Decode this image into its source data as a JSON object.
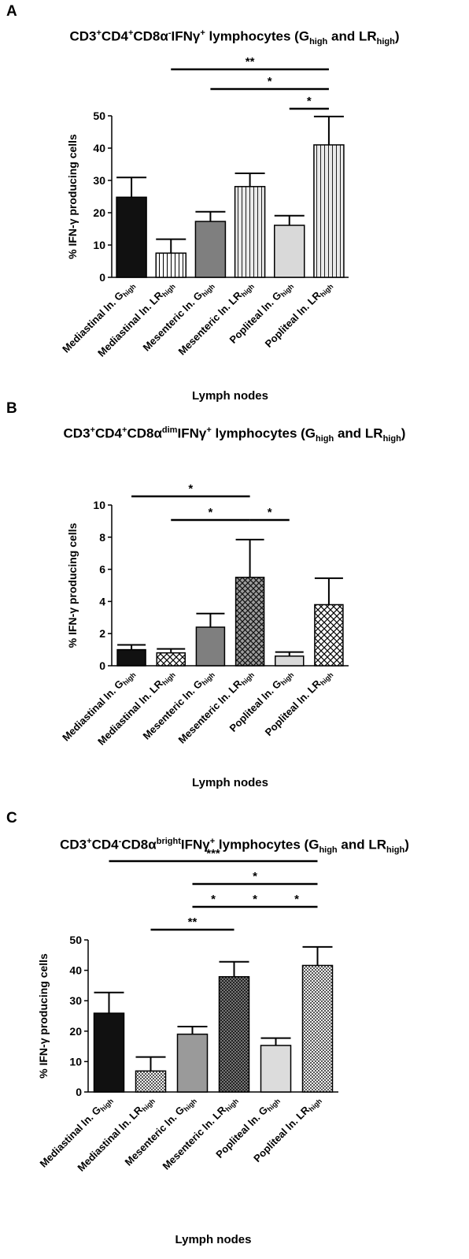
{
  "figure": {
    "panels": [
      {
        "label": "A",
        "title": {
          "cd3": "CD3",
          "cd3_sup": "+",
          "cd4": "CD4",
          "cd4_sup": "+",
          "cd8": "CD8α",
          "cd8_sup": "-",
          "ifn": "IFNγ",
          "ifn_sup": "+",
          "rest": " lymphocytes (G",
          "sub1": "high",
          "mid": " and LR",
          "sub2": "high",
          "end": ")"
        },
        "ylabel": "% IFN-γ producing cells",
        "xlabel": "Lymph nodes"
      },
      {
        "label": "B",
        "title": {
          "cd3": "CD3",
          "cd3_sup": "+",
          "cd4": "CD4",
          "cd4_sup": "+",
          "cd8": "CD8α",
          "cd8_sup": "dim",
          "ifn": "IFNγ",
          "ifn_sup": "+",
          "rest": " lymphocytes (G",
          "sub1": "high",
          "mid": " and LR",
          "sub2": "high",
          "end": ")"
        },
        "ylabel": "% IFN-γ producing cells",
        "xlabel": "Lymph nodes"
      },
      {
        "label": "C",
        "title": {
          "cd3": "CD3",
          "cd3_sup": "+",
          "cd4": "CD4",
          "cd4_sup": "-",
          "cd8": "CD8α",
          "cd8_sup": "bright",
          "ifn": "IFNγ",
          "ifn_sup": "+",
          "rest": " lymphocytes (G",
          "sub1": "high",
          "mid": " and LR",
          "sub2": "high",
          "end": ")"
        },
        "ylabel": "% IFN-γ producing cells",
        "xlabel": "Lymph nodes"
      }
    ]
  },
  "chart_data": [
    {
      "type": "bar",
      "panel": "A",
      "categories": [
        {
          "base": "Mediastinal ln. G",
          "sub": "high"
        },
        {
          "base": "Mediastinal ln. LR",
          "sub": "high"
        },
        {
          "base": "Mesenteric ln. G",
          "sub": "high"
        },
        {
          "base": "Mesenteric ln. LR",
          "sub": "high"
        },
        {
          "base": "Popliteal ln. G",
          "sub": "high"
        },
        {
          "base": "Popliteal ln. LR",
          "sub": "high"
        }
      ],
      "values": [
        24.8,
        7.5,
        17.3,
        28.1,
        16.1,
        41.0
      ],
      "errors": [
        6.1,
        4.3,
        3.0,
        4.1,
        3.0,
        8.8
      ],
      "fills": [
        "#111111",
        "pattern-vlines",
        "#7f7f7f",
        "pattern-vlines-gray",
        "#d9d9d9",
        "pattern-vlines-gray"
      ],
      "ylim": [
        0,
        50
      ],
      "yticks": [
        0,
        10,
        20,
        30,
        40,
        50
      ],
      "significance": [
        {
          "from": 1,
          "to": 5,
          "label": "**"
        },
        {
          "from": 2,
          "to": 5,
          "label": "*"
        },
        {
          "from": 4,
          "to": 5,
          "label": "*"
        }
      ]
    },
    {
      "type": "bar",
      "panel": "B",
      "categories": [
        {
          "base": "Mediastinal ln. G",
          "sub": "high"
        },
        {
          "base": "Mediastinal ln. LR",
          "sub": "high"
        },
        {
          "base": "Mesenteric ln. G",
          "sub": "high"
        },
        {
          "base": "Mesenteric ln. LR",
          "sub": "high"
        },
        {
          "base": "Popliteal ln. G",
          "sub": "high"
        },
        {
          "base": "Popliteal ln. LR",
          "sub": "high"
        }
      ],
      "values": [
        1.0,
        0.8,
        2.4,
        5.5,
        0.6,
        3.8
      ],
      "errors": [
        0.3,
        0.25,
        0.85,
        2.35,
        0.25,
        1.65
      ],
      "fills": [
        "#111111",
        "pattern-cross",
        "#7f7f7f",
        "pattern-cross-gray",
        "#d9d9d9",
        "pattern-cross"
      ],
      "ylim": [
        0,
        10
      ],
      "yticks": [
        0,
        2,
        4,
        6,
        8,
        10
      ],
      "significance": [
        {
          "from": 0,
          "to": 3,
          "label": "*"
        },
        {
          "from": 1,
          "to": 3,
          "label": "*"
        },
        {
          "from": 3,
          "to": 4,
          "label": "*"
        }
      ]
    },
    {
      "type": "bar",
      "panel": "C",
      "categories": [
        {
          "base": "Mediastinal ln. G",
          "sub": "high"
        },
        {
          "base": "Mediastinal ln. LR",
          "sub": "high"
        },
        {
          "base": "Mesenteric ln. G",
          "sub": "high"
        },
        {
          "base": "Mesenteric ln. LR",
          "sub": "high"
        },
        {
          "base": "Popliteal ln. G",
          "sub": "high"
        },
        {
          "base": "Popliteal ln. LR",
          "sub": "high"
        }
      ],
      "values": [
        25.9,
        6.9,
        19.0,
        37.9,
        15.3,
        41.6
      ],
      "errors": [
        6.8,
        4.6,
        2.5,
        4.9,
        2.4,
        6.1
      ],
      "fills": [
        "#111111",
        "pattern-dots",
        "#9a9a9a",
        "pattern-dots-dark",
        "#dcdcdc",
        "pattern-dots"
      ],
      "ylim": [
        0,
        50
      ],
      "yticks": [
        0,
        10,
        20,
        30,
        40,
        50
      ],
      "significance": [
        {
          "from": 0,
          "to": 5,
          "label": "***"
        },
        {
          "from": 2,
          "to": 5,
          "label": "*"
        },
        {
          "from": 2,
          "to": 3,
          "label": "*"
        },
        {
          "from": 3,
          "to": 4,
          "label": "*"
        },
        {
          "from": 4,
          "to": 5,
          "label": "*"
        },
        {
          "from": 1,
          "to": 3,
          "label": "**"
        }
      ]
    }
  ]
}
